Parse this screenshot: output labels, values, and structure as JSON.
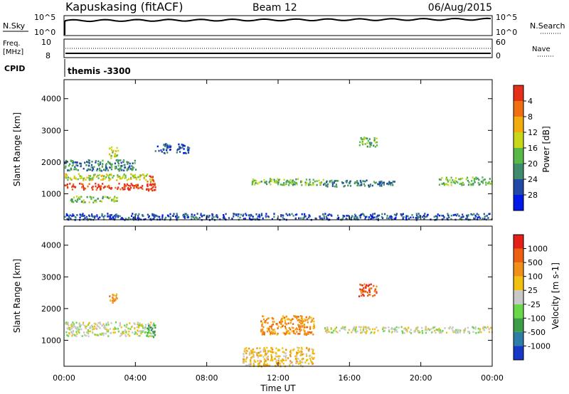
{
  "header": {
    "station": "Kapuskasing (fitACF)",
    "beam": "Beam 12",
    "date": "06/Aug/2015"
  },
  "top_panels": {
    "nsky_label": "N.Sky",
    "nsearch_label": "N.Search",
    "noise_ticks": [
      "10^5",
      "10^0"
    ],
    "freq_label_1": "Freq.",
    "freq_label_2": "[MHz]",
    "freq_ticks": [
      "10",
      "8"
    ],
    "nave_label": "Nave",
    "nave_ticks": [
      "60",
      "0"
    ],
    "cpid_label": "CPID",
    "cpid_value": "themis -3300"
  },
  "chart_data": [
    {
      "type": "heatmap",
      "ylabel": "Slant Range [km]",
      "xlabel": "",
      "ylim": [
        180,
        4600
      ],
      "yticks": [
        1000,
        2000,
        3000,
        4000
      ],
      "xlim": [
        0,
        24
      ],
      "xtick_labels": [
        "00:00",
        "04:00",
        "08:00",
        "12:00",
        "16:00",
        "20:00",
        "00:00"
      ],
      "colorbar": {
        "label": "Power [dB]",
        "ticks": [
          "4",
          "8",
          "12",
          "16",
          "20",
          "24",
          "28"
        ],
        "colors": [
          "#0018e8",
          "#2448a8",
          "#3e8c6c",
          "#58b848",
          "#c8d818",
          "#f2ac10",
          "#f07010",
          "#e43018"
        ]
      },
      "regions": [
        {
          "t": [
            0.0,
            5.0
          ],
          "r": [
            1150,
            1350
          ],
          "level": 7
        },
        {
          "t": [
            0.0,
            5.0
          ],
          "r": [
            1450,
            1650
          ],
          "level": 4
        },
        {
          "t": [
            4.6,
            5.1
          ],
          "r": [
            1100,
            1600
          ],
          "level": 7
        },
        {
          "t": [
            0.3,
            3.0
          ],
          "r": [
            750,
            950
          ],
          "level": 3
        },
        {
          "t": [
            2.5,
            3.0
          ],
          "r": [
            2150,
            2500
          ],
          "level": 4
        },
        {
          "t": [
            5.0,
            7.0
          ],
          "r": [
            2300,
            2600
          ],
          "level": 1
        },
        {
          "t": [
            0.0,
            4.0
          ],
          "r": [
            1750,
            2100
          ],
          "level": 2
        },
        {
          "t": [
            10.5,
            14.5
          ],
          "r": [
            1300,
            1500
          ],
          "level": 3
        },
        {
          "t": [
            14.5,
            18.5
          ],
          "r": [
            1250,
            1450
          ],
          "level": 2
        },
        {
          "t": [
            16.5,
            17.5
          ],
          "r": [
            2500,
            2800
          ],
          "level": 3
        },
        {
          "t": [
            21.0,
            24.0
          ],
          "r": [
            1300,
            1550
          ],
          "level": 3
        },
        {
          "t": [
            0.0,
            24.0
          ],
          "r": [
            200,
            400
          ],
          "level": 1
        }
      ]
    },
    {
      "type": "heatmap",
      "ylabel": "Slant Range [km]",
      "xlabel": "Time UT",
      "ylim": [
        180,
        4600
      ],
      "yticks": [
        1000,
        2000,
        3000,
        4000
      ],
      "xlim": [
        0,
        24
      ],
      "xtick_labels": [
        "00:00",
        "04:00",
        "08:00",
        "12:00",
        "16:00",
        "20:00",
        "00:00"
      ],
      "colorbar": {
        "label": "Velocity [m s-1]",
        "ticks": [
          "1000",
          "500",
          "100",
          "25",
          "-25",
          "-100",
          "-500",
          "-1000"
        ],
        "colors": [
          "#1838c8",
          "#2e7ca8",
          "#3c9c48",
          "#68d848",
          "#c8c8c8",
          "#f2c010",
          "#f09018",
          "#ee6010",
          "#e42018"
        ]
      },
      "regions": [
        {
          "t": [
            0.0,
            5.0
          ],
          "r": [
            1150,
            1600
          ],
          "level": 4
        },
        {
          "t": [
            4.6,
            5.1
          ],
          "r": [
            1100,
            1600
          ],
          "level": 2
        },
        {
          "t": [
            2.5,
            3.0
          ],
          "r": [
            2150,
            2500
          ],
          "level": 6
        },
        {
          "t": [
            11.0,
            14.0
          ],
          "r": [
            1200,
            1800
          ],
          "level": 6
        },
        {
          "t": [
            14.5,
            24.0
          ],
          "r": [
            1250,
            1450
          ],
          "level": 4
        },
        {
          "t": [
            16.5,
            17.5
          ],
          "r": [
            2400,
            2800
          ],
          "level": 7
        },
        {
          "t": [
            10.0,
            14.0
          ],
          "r": [
            200,
            800
          ],
          "level": 5
        }
      ]
    }
  ]
}
